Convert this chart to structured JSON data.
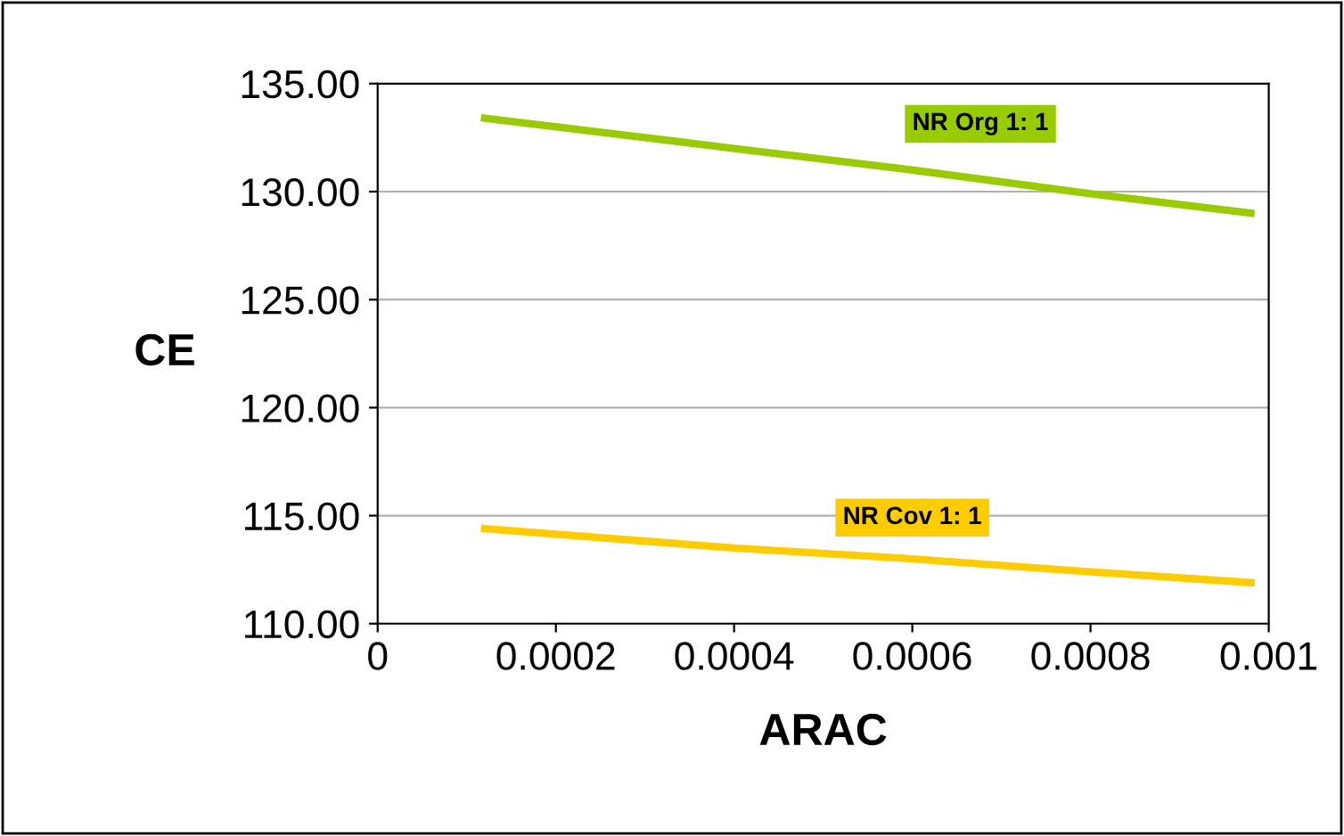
{
  "chart_data": {
    "type": "line",
    "xlabel": "ARAC",
    "ylabel": "CE",
    "xlim": [
      0,
      0.001
    ],
    "xticks": [
      0,
      0.0002,
      0.0004,
      0.0006,
      0.0008,
      0.001
    ],
    "ylim": [
      110,
      135
    ],
    "yticks": [
      {
        "value": 110,
        "label": "110.00"
      },
      {
        "value": 115,
        "label": "115.00"
      },
      {
        "value": 120,
        "label": "120.00"
      },
      {
        "value": 125,
        "label": "125.00"
      },
      {
        "value": 130,
        "label": "130.00"
      },
      {
        "value": 135,
        "label": "135.00"
      }
    ],
    "grid": "y",
    "legend": false,
    "marker": "none",
    "line_style": "solid",
    "series": [
      {
        "name": "NR Org 1: 1",
        "color": "#99cc00",
        "x": [
          0.00012,
          0.0004,
          0.0006,
          0.0008,
          0.00098
        ],
        "values": [
          133.4,
          132.0,
          131.0,
          129.9,
          129.0
        ]
      },
      {
        "name": "NR Cov 1: 1",
        "color": "#ffcc00",
        "x": [
          0.00012,
          0.0004,
          0.0006,
          0.0008,
          0.00098
        ],
        "values": [
          114.4,
          113.5,
          113.0,
          112.4,
          111.9
        ]
      }
    ]
  }
}
